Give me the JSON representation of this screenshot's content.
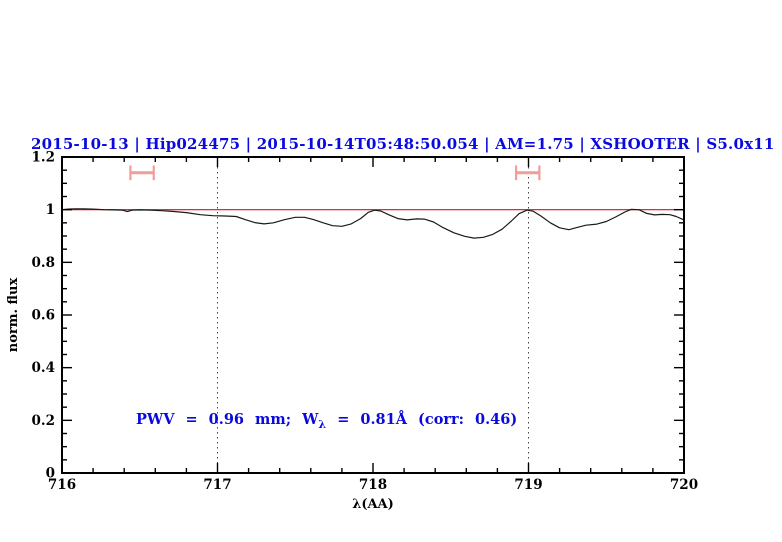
{
  "chart_data": {
    "type": "line",
    "title": "2015-10-13 | Hip024475 | 2015-10-14T05:48:50.054 | AM=1.75 | XSHOOTER | S5.0x11",
    "title_color": "#0a0adf",
    "xlabel": "λ(AA)",
    "ylabel": "norm. flux",
    "xlim": [
      716,
      720
    ],
    "ylim": [
      0,
      1.2
    ],
    "x_major_ticks": [
      716,
      717,
      718,
      719,
      720
    ],
    "x_tick_labels": [
      "716",
      "717",
      "718",
      "719",
      "720"
    ],
    "x_minor_step": 0.2,
    "y_major_ticks": [
      0,
      0.2,
      0.4,
      0.6,
      0.8,
      1,
      1.2
    ],
    "y_tick_labels": [
      "0",
      "0.2",
      "0.4",
      "0.6",
      "0.8",
      "1",
      "1.2"
    ],
    "y_minor_step": 0.05,
    "grid": "off",
    "legend": "none",
    "frame_color": "#000000",
    "dotted_vlines": [
      717,
      719
    ],
    "dotted_vline_color": "#444444",
    "reference_line": {
      "y": 1.0,
      "color": "#dd1111"
    },
    "range_markers": [
      {
        "x_start": 716.44,
        "x_end": 716.59,
        "y": 1.14,
        "cap_half_height": 0.028,
        "color": "#f29c9c"
      },
      {
        "x_start": 718.92,
        "x_end": 719.07,
        "y": 1.14,
        "cap_half_height": 0.028,
        "color": "#f29c9c"
      }
    ],
    "series": [
      {
        "name": "normalized-telluric-spectrum",
        "color": "#1a1a1a",
        "points": [
          [
            716.0,
            1.0
          ],
          [
            716.04,
            1.002
          ],
          [
            716.08,
            1.003
          ],
          [
            716.14,
            1.003
          ],
          [
            716.2,
            1.002
          ],
          [
            716.27,
            1.0
          ],
          [
            716.33,
            0.999
          ],
          [
            716.39,
            0.998
          ],
          [
            716.42,
            0.993
          ],
          [
            716.45,
            0.998
          ],
          [
            716.5,
            0.999
          ],
          [
            716.57,
            0.998
          ],
          [
            716.64,
            0.996
          ],
          [
            716.72,
            0.993
          ],
          [
            716.8,
            0.989
          ],
          [
            716.89,
            0.981
          ],
          [
            716.97,
            0.977
          ],
          [
            717.05,
            0.976
          ],
          [
            717.12,
            0.974
          ],
          [
            717.18,
            0.962
          ],
          [
            717.24,
            0.951
          ],
          [
            717.3,
            0.946
          ],
          [
            717.36,
            0.95
          ],
          [
            717.43,
            0.962
          ],
          [
            717.5,
            0.971
          ],
          [
            717.56,
            0.971
          ],
          [
            717.62,
            0.962
          ],
          [
            717.68,
            0.95
          ],
          [
            717.74,
            0.939
          ],
          [
            717.8,
            0.937
          ],
          [
            717.86,
            0.946
          ],
          [
            717.92,
            0.966
          ],
          [
            717.97,
            0.99
          ],
          [
            718.01,
            0.998
          ],
          [
            718.05,
            0.995
          ],
          [
            718.1,
            0.981
          ],
          [
            718.16,
            0.966
          ],
          [
            718.22,
            0.961
          ],
          [
            718.28,
            0.965
          ],
          [
            718.33,
            0.964
          ],
          [
            718.39,
            0.953
          ],
          [
            718.45,
            0.932
          ],
          [
            718.52,
            0.912
          ],
          [
            718.59,
            0.899
          ],
          [
            718.65,
            0.892
          ],
          [
            718.71,
            0.895
          ],
          [
            718.77,
            0.906
          ],
          [
            718.83,
            0.926
          ],
          [
            718.89,
            0.957
          ],
          [
            718.94,
            0.985
          ],
          [
            718.99,
            0.998
          ],
          [
            719.03,
            0.994
          ],
          [
            719.08,
            0.976
          ],
          [
            719.14,
            0.95
          ],
          [
            719.2,
            0.931
          ],
          [
            719.26,
            0.924
          ],
          [
            719.31,
            0.932
          ],
          [
            719.37,
            0.941
          ],
          [
            719.44,
            0.945
          ],
          [
            719.5,
            0.955
          ],
          [
            719.56,
            0.972
          ],
          [
            719.62,
            0.991
          ],
          [
            719.66,
            1.001
          ],
          [
            719.71,
            1.0
          ],
          [
            719.76,
            0.986
          ],
          [
            719.81,
            0.98
          ],
          [
            719.86,
            0.982
          ],
          [
            719.91,
            0.981
          ],
          [
            719.95,
            0.974
          ],
          [
            720.0,
            0.961
          ]
        ]
      }
    ],
    "annotation": {
      "pre": "PWV = 0.96 mm; W",
      "sub": "λ",
      "post": " = 0.81Å (corr: 0.46)",
      "color": "#0a0adf"
    }
  }
}
